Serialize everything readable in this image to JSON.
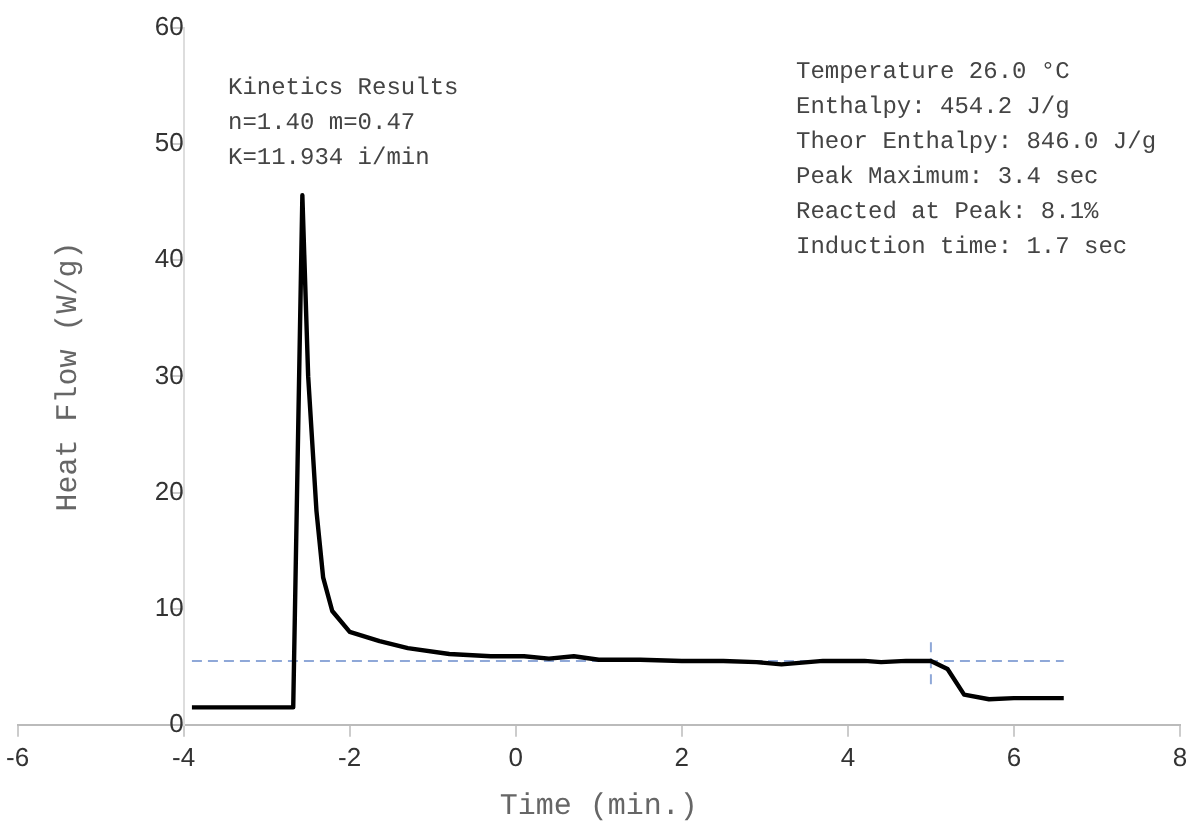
{
  "chart_data": {
    "type": "line",
    "xlabel": "Time (min.)",
    "ylabel": "Heat Flow (W/g)",
    "annotations": [
      "Kinetics Results\nn=1.40 m=0.47\nK=11.934 i/min",
      "Temperature 26.0 °C\nEnthalpy: 454.2 J/g\nTheor Enthalpy: 846.0 J/g\nPeak Maximum: 3.4 sec\nReacted at Peak: 8.1%\nInduction time: 1.7 sec"
    ],
    "xlim": [
      -6,
      8
    ],
    "xticks": [
      -6,
      -4,
      -2,
      0,
      2,
      4,
      6,
      8
    ],
    "ylim": [
      0,
      60
    ],
    "yticks": [
      0,
      10,
      20,
      30,
      40,
      50,
      60
    ],
    "series": [
      {
        "color": "#000000",
        "x": [
          -3.9,
          -2.68,
          -2.57,
          -2.5,
          -2.4,
          -2.32,
          -2.21,
          -2.0,
          -1.64,
          -1.3,
          -0.8,
          -0.3,
          0.1,
          0.4,
          0.7,
          1.0,
          1.5,
          2.0,
          2.5,
          2.9,
          3.2,
          3.7,
          4.2,
          4.4,
          4.7,
          5.0,
          5.2,
          5.4,
          5.7,
          6.0,
          6.6
        ],
        "values": [
          1.5,
          1.5,
          45.6,
          30,
          18.4,
          12.7,
          9.8,
          8.0,
          7.2,
          6.6,
          6.1,
          5.9,
          5.9,
          5.7,
          5.9,
          5.6,
          5.6,
          5.5,
          5.5,
          5.4,
          5.2,
          5.5,
          5.5,
          5.4,
          5.5,
          5.5,
          4.8,
          2.6,
          2.2,
          2.3,
          2.3
        ]
      },
      {
        "type": "line",
        "color": "#8fa8d8",
        "line_style": "dashed",
        "x": [
          5.0,
          5.0
        ],
        "values": [
          3.5,
          7.5
        ]
      }
    ],
    "ref_lines": [
      {
        "axis": "y",
        "value": 5.5,
        "color": "#8fa8d8",
        "line_style": "dashed"
      }
    ],
    "grid": false,
    "legend": false,
    "marker": "none",
    "line_style": "solid"
  }
}
